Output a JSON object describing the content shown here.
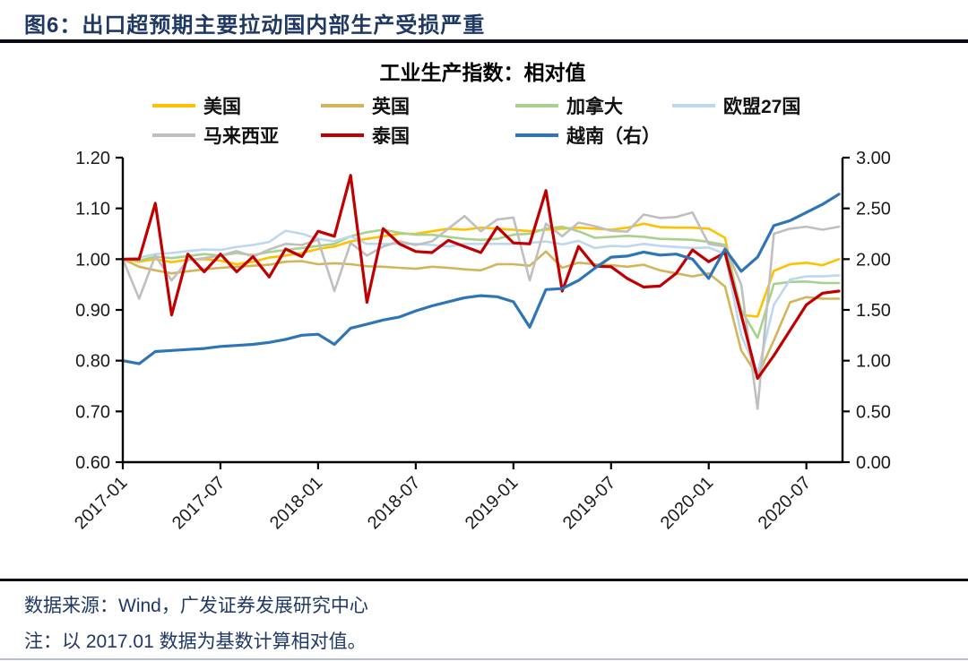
{
  "header": {
    "title": "图6：出口超预期主要拉动国内部生产受损严重"
  },
  "chart": {
    "title": "工业生产指数：相对值"
  },
  "footer": {
    "source": "数据来源：Wind，广发证券发展研究中心",
    "note": "注：以 2017.01 数据为基数计算相对值。"
  },
  "colors": {
    "title_text": "#1F3864",
    "rule": "#0b0b14",
    "axis": "#000000"
  },
  "chart_data": {
    "type": "line",
    "title": "工业生产指数：相对值",
    "grid": false,
    "legend_position": "top",
    "categories": [
      "2017-01",
      "2017-02",
      "2017-03",
      "2017-04",
      "2017-05",
      "2017-06",
      "2017-07",
      "2017-08",
      "2017-09",
      "2017-10",
      "2017-11",
      "2017-12",
      "2018-01",
      "2018-02",
      "2018-03",
      "2018-04",
      "2018-05",
      "2018-06",
      "2018-07",
      "2018-08",
      "2018-09",
      "2018-10",
      "2018-11",
      "2018-12",
      "2019-01",
      "2019-02",
      "2019-03",
      "2019-04",
      "2019-05",
      "2019-06",
      "2019-07",
      "2019-08",
      "2019-09",
      "2019-10",
      "2019-11",
      "2019-12",
      "2020-01",
      "2020-02",
      "2020-03",
      "2020-04",
      "2020-05",
      "2020-06",
      "2020-07",
      "2020-08",
      "2020-09"
    ],
    "x_tick_labels": [
      "2017-01",
      "2017-07",
      "2018-01",
      "2018-07",
      "2019-01",
      "2019-07",
      "2020-01",
      "2020-07"
    ],
    "left_axis": {
      "min": 0.6,
      "max": 1.2,
      "ticks": [
        "1.20",
        "1.10",
        "1.00",
        "0.90",
        "0.80",
        "0.70",
        "0.60"
      ]
    },
    "right_axis": {
      "min": 0.0,
      "max": 3.0,
      "ticks": [
        "3.00",
        "2.50",
        "2.00",
        "1.50",
        "1.00",
        "0.50",
        "0.00"
      ]
    },
    "series": [
      {
        "name": "美国",
        "color": "#FFC000",
        "axis": "left",
        "width": 2.6,
        "values": [
          1.0,
          0.995,
          1.0,
          0.994,
          0.999,
          1.0,
          0.997,
          0.99,
          0.995,
          1.003,
          1.007,
          1.012,
          1.02,
          1.025,
          1.035,
          1.04,
          1.045,
          1.05,
          1.05,
          1.055,
          1.06,
          1.058,
          1.062,
          1.06,
          1.058,
          1.055,
          1.058,
          1.06,
          1.062,
          1.06,
          1.058,
          1.062,
          1.07,
          1.063,
          1.062,
          1.062,
          1.06,
          1.042,
          0.89,
          0.887,
          0.977,
          0.99,
          0.993,
          0.988,
          1.0
        ]
      },
      {
        "name": "英国",
        "color": "#D2B55B",
        "axis": "left",
        "width": 2.6,
        "values": [
          1.0,
          0.985,
          0.978,
          0.972,
          0.976,
          0.98,
          0.983,
          0.985,
          0.987,
          0.989,
          0.995,
          0.996,
          0.99,
          0.992,
          0.99,
          0.986,
          0.985,
          0.983,
          0.981,
          0.985,
          0.983,
          0.98,
          0.978,
          0.99,
          0.99,
          0.987,
          1.015,
          0.983,
          0.993,
          0.99,
          0.988,
          0.985,
          0.989,
          0.978,
          0.972,
          0.966,
          0.972,
          0.946,
          0.82,
          0.77,
          0.84,
          0.915,
          0.925,
          0.922,
          0.922
        ]
      },
      {
        "name": "加拿大",
        "color": "#A9D18E",
        "axis": "left",
        "width": 2.6,
        "values": [
          1.0,
          0.997,
          1.005,
          1.002,
          1.006,
          1.01,
          1.007,
          1.012,
          1.008,
          1.014,
          1.018,
          1.022,
          1.026,
          1.03,
          1.045,
          1.053,
          1.058,
          1.052,
          1.048,
          1.048,
          1.044,
          1.04,
          1.038,
          1.04,
          1.048,
          1.05,
          1.06,
          1.064,
          1.055,
          1.042,
          1.044,
          1.046,
          1.044,
          1.04,
          1.039,
          1.038,
          1.034,
          1.028,
          0.9,
          0.845,
          0.951,
          0.955,
          0.956,
          0.953,
          0.953
        ]
      },
      {
        "name": "欧盟27国",
        "color": "#BDD7EE",
        "axis": "left",
        "width": 2.6,
        "values": [
          1.0,
          1.003,
          1.01,
          1.012,
          1.016,
          1.019,
          1.018,
          1.024,
          1.028,
          1.034,
          1.056,
          1.05,
          1.04,
          1.035,
          1.045,
          1.03,
          1.03,
          1.03,
          1.03,
          1.028,
          1.025,
          1.03,
          1.03,
          1.03,
          1.03,
          1.032,
          1.035,
          1.029,
          1.036,
          1.022,
          1.026,
          1.025,
          1.03,
          1.026,
          1.024,
          1.022,
          1.023,
          1.01,
          0.85,
          0.775,
          0.91,
          0.96,
          0.966,
          0.966,
          0.968
        ]
      },
      {
        "name": "马来西亚",
        "color": "#BFBFBF",
        "axis": "left",
        "width": 2.6,
        "values": [
          1.0,
          0.922,
          1.007,
          0.958,
          0.998,
          1.002,
          1.007,
          1.016,
          1.005,
          1.019,
          1.03,
          1.028,
          1.038,
          0.937,
          1.032,
          1.007,
          1.025,
          1.035,
          1.028,
          1.035,
          1.06,
          1.085,
          1.055,
          1.078,
          1.082,
          0.958,
          1.07,
          1.045,
          1.072,
          1.065,
          1.056,
          1.054,
          1.088,
          1.081,
          1.083,
          1.092,
          1.03,
          1.025,
          0.95,
          0.705,
          1.05,
          1.06,
          1.064,
          1.058,
          1.064
        ]
      },
      {
        "name": "泰国",
        "color": "#C00000",
        "axis": "left",
        "width": 3.2,
        "values": [
          1.0,
          1.0,
          1.11,
          0.89,
          1.01,
          0.975,
          1.01,
          0.975,
          1.005,
          0.965,
          1.02,
          1.005,
          1.055,
          1.045,
          1.165,
          0.915,
          1.06,
          1.03,
          1.015,
          1.013,
          1.037,
          1.025,
          1.013,
          1.063,
          1.032,
          1.03,
          1.135,
          0.937,
          1.025,
          0.986,
          0.985,
          0.962,
          0.945,
          0.947,
          0.972,
          1.018,
          0.995,
          1.013,
          0.89,
          0.765,
          0.81,
          0.86,
          0.91,
          0.933,
          0.937
        ]
      },
      {
        "name": "越南（右）",
        "color": "#2E75B6",
        "axis": "right",
        "width": 3.2,
        "values": [
          1.0,
          0.97,
          1.09,
          1.1,
          1.11,
          1.12,
          1.14,
          1.15,
          1.16,
          1.18,
          1.21,
          1.25,
          1.26,
          1.16,
          1.32,
          1.36,
          1.4,
          1.43,
          1.49,
          1.54,
          1.58,
          1.62,
          1.64,
          1.63,
          1.58,
          1.33,
          1.7,
          1.71,
          1.79,
          1.91,
          2.02,
          2.03,
          2.07,
          2.04,
          2.05,
          2.0,
          1.81,
          2.1,
          1.88,
          2.02,
          2.33,
          2.38,
          2.46,
          2.54,
          2.64
        ]
      }
    ]
  }
}
